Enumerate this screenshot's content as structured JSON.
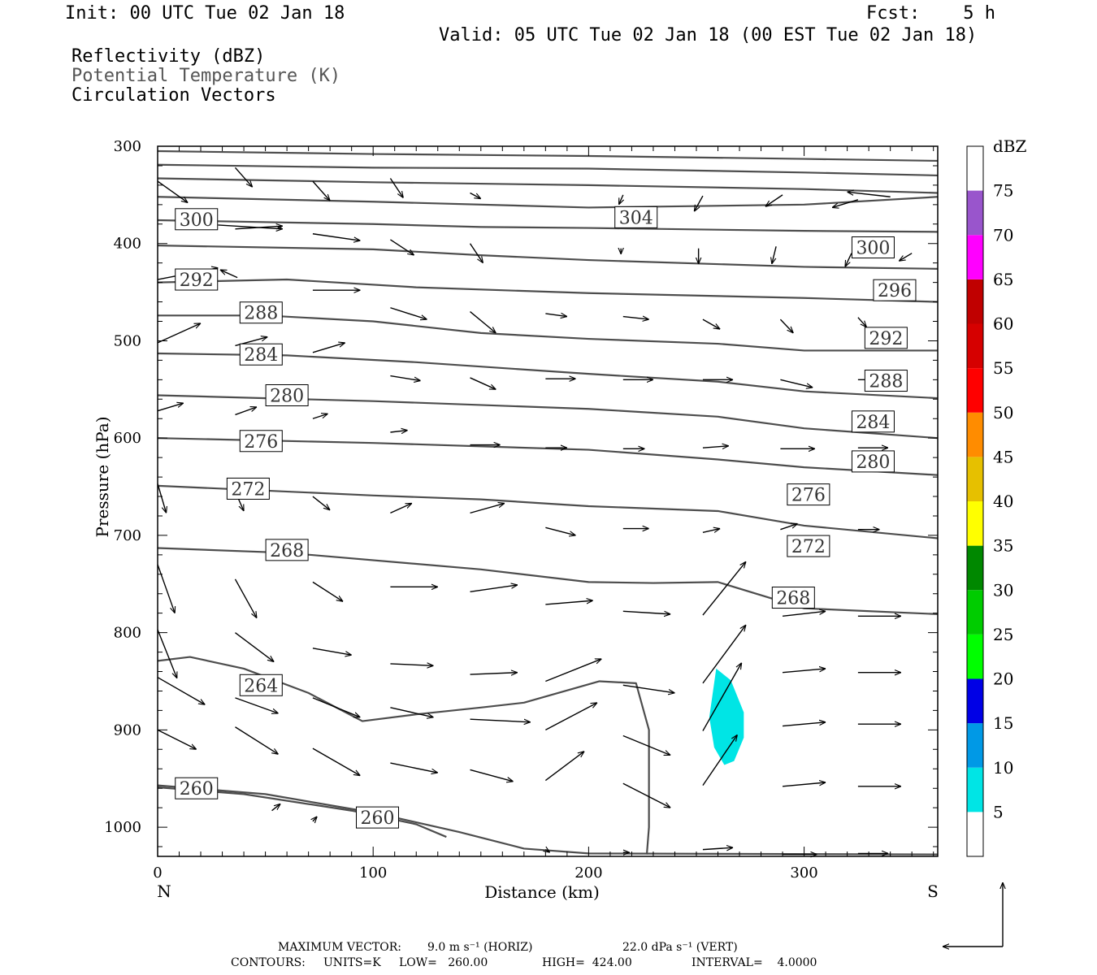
{
  "header": {
    "init": "Init: 00 UTC Tue 02 Jan 18",
    "fcst": "Fcst:    5 h",
    "valid": "Valid: 05 UTC Tue 02 Jan 18 (00 EST Tue 02 Jan 18)",
    "fields": [
      "Reflectivity (dBZ)",
      "Potential Temperature (K)",
      "Circulation Vectors"
    ]
  },
  "colors": {
    "contour": "#4d4d4d",
    "cyan": "#00e5e5",
    "scale": [
      "#00e5e5",
      "#0099e6",
      "#0000e6",
      "#00ff00",
      "#00cc00",
      "#008800",
      "#ffff00",
      "#e6c000",
      "#ff8c00",
      "#ff0000",
      "#d60000",
      "#c00000",
      "#ff00ff",
      "#9955cc"
    ]
  },
  "chart_data": {
    "type": "cross-section",
    "xlabel": "Distance (km)",
    "ylabel": "Pressure (hPa)",
    "xlim": [
      0,
      362
    ],
    "ylim": [
      1030,
      300
    ],
    "x_ticks": [
      0,
      100,
      200,
      300
    ],
    "y_ticks": [
      300,
      400,
      500,
      600,
      700,
      800,
      900,
      1000
    ],
    "x_end_labels": {
      "left": "N",
      "right": "S"
    },
    "colorbar": {
      "unit": "dBZ",
      "levels": [
        5,
        10,
        15,
        20,
        25,
        30,
        35,
        40,
        45,
        50,
        55,
        60,
        65,
        70,
        75
      ]
    },
    "contour_labels": [
      {
        "text": "300",
        "x": 18,
        "p": 375
      },
      {
        "text": "304",
        "x": 222,
        "p": 373
      },
      {
        "text": "300",
        "x": 332,
        "p": 404
      },
      {
        "text": "292",
        "x": 18,
        "p": 437
      },
      {
        "text": "296",
        "x": 342,
        "p": 448
      },
      {
        "text": "288",
        "x": 48,
        "p": 471
      },
      {
        "text": "292",
        "x": 338,
        "p": 497
      },
      {
        "text": "284",
        "x": 48,
        "p": 514
      },
      {
        "text": "288",
        "x": 338,
        "p": 541
      },
      {
        "text": "280",
        "x": 60,
        "p": 556
      },
      {
        "text": "284",
        "x": 332,
        "p": 583
      },
      {
        "text": "276",
        "x": 48,
        "p": 603
      },
      {
        "text": "280",
        "x": 332,
        "p": 624
      },
      {
        "text": "272",
        "x": 42,
        "p": 652
      },
      {
        "text": "276",
        "x": 302,
        "p": 658
      },
      {
        "text": "268",
        "x": 60,
        "p": 715
      },
      {
        "text": "272",
        "x": 302,
        "p": 711
      },
      {
        "text": "268",
        "x": 295,
        "p": 764
      },
      {
        "text": "264",
        "x": 48,
        "p": 854
      },
      {
        "text": "260",
        "x": 18,
        "p": 960
      },
      {
        "text": "260",
        "x": 102,
        "p": 990
      }
    ],
    "reflectivity_area": {
      "level": 5,
      "x": [
        256,
        272
      ],
      "p": [
        837,
        936
      ]
    },
    "max_vector": {
      "horizontal": "9.0 m s⁻¹ (HORIZ)",
      "vertical": "22.0 dPa s⁻¹ (VERT)"
    },
    "contours_info": {
      "units": "K",
      "low": "260.00",
      "high": "424.00",
      "interval": "4.0000"
    }
  },
  "footer": {
    "max_vector_label": "MAXIMUM VECTOR:",
    "max_vector_h": "9.0 m s⁻¹ (HORIZ)",
    "max_vector_v": "22.0 dPa s⁻¹ (VERT)",
    "contours_label": "CONTOURS:",
    "units": "UNITS=K",
    "low": "LOW=   260.00",
    "high": "HIGH=  424.00",
    "interval": "INTERVAL=    4.0000"
  }
}
